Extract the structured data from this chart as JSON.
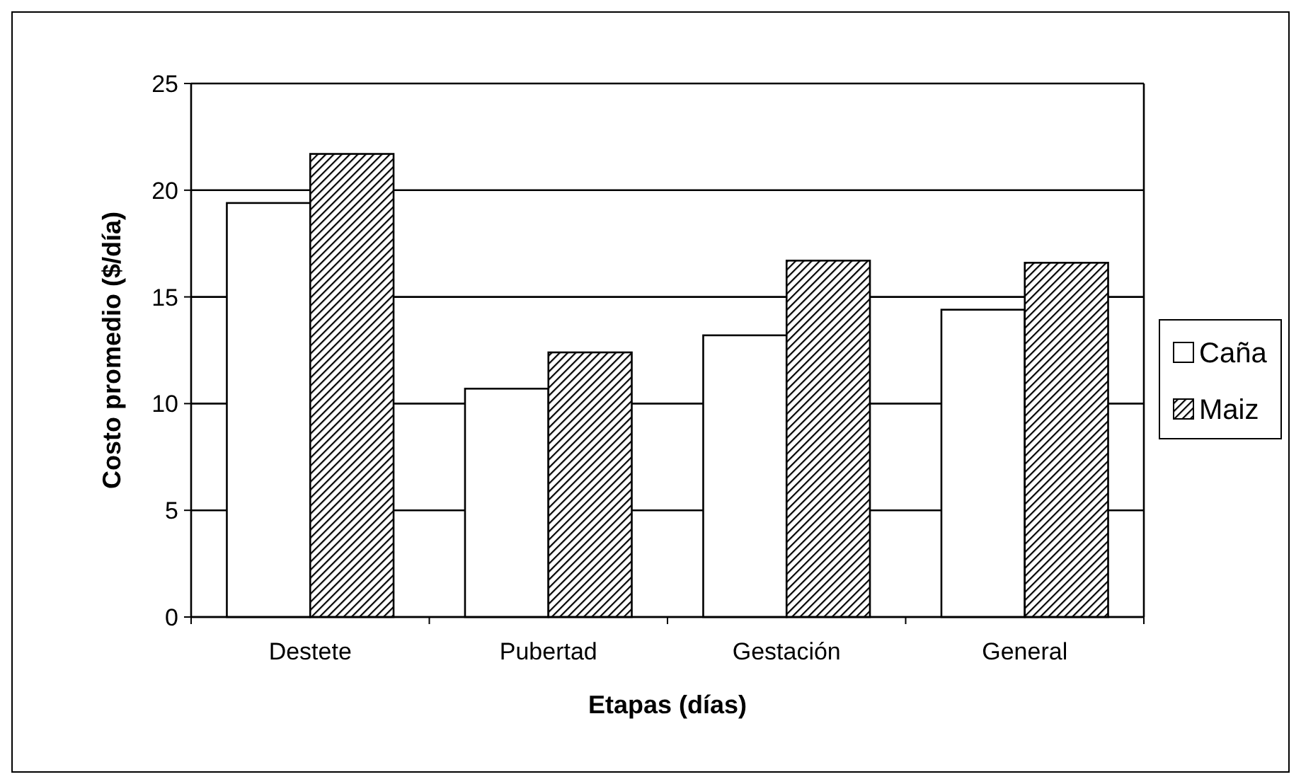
{
  "chart_data": {
    "type": "bar",
    "xlabel": "Etapas (días)",
    "ylabel": "Costo promedio ($/día)",
    "categories": [
      "Destete",
      "Pubertad",
      "Gestación",
      "General"
    ],
    "series": [
      {
        "name": "Caña",
        "color": "#ffffff",
        "values": [
          19.4,
          10.7,
          13.2,
          14.4
        ]
      },
      {
        "name": "Maiz",
        "color": "#000000",
        "values": [
          21.7,
          12.4,
          16.7,
          16.6
        ]
      }
    ],
    "ylim": [
      0,
      25
    ],
    "yticks": [
      0,
      5,
      10,
      15,
      20,
      25
    ],
    "grid": "y",
    "legend": "right"
  }
}
